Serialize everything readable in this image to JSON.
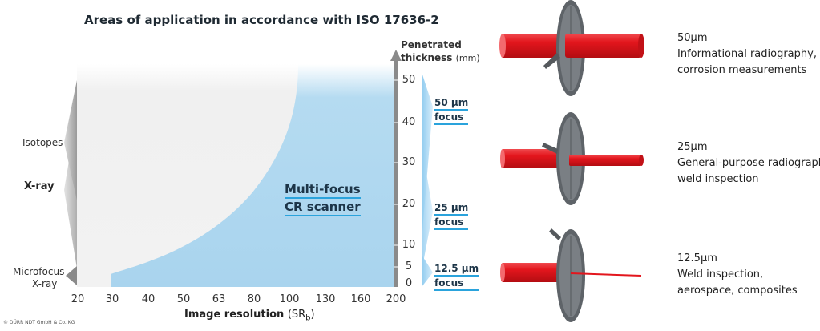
{
  "title": "Areas of application in accordance with ISO 17636-2",
  "left_labels": {
    "isotopes": "Isotopes",
    "xray": "X-ray",
    "microfocus_line1": "Microfocus",
    "microfocus_line2": "X-ray"
  },
  "y_axis": {
    "label_line1": "Penetrated",
    "label_line2": "thickness",
    "unit": "(mm)",
    "ticks": [
      "50",
      "40",
      "30",
      "20",
      "10",
      "5",
      "0"
    ]
  },
  "x_axis": {
    "label": "Image resolution",
    "unit": "(SR",
    "unit_sub": "b",
    "unit_close": ")",
    "ticks": [
      "20",
      "30",
      "40",
      "50",
      "63",
      "80",
      "100",
      "130",
      "160",
      "200"
    ]
  },
  "scanner": {
    "line1": "Multi-focus",
    "line2": "CR scanner"
  },
  "focus_labels": [
    {
      "line1": "50 µm",
      "line2": "focus"
    },
    {
      "line1": "25 µm",
      "line2": "focus"
    },
    {
      "line1": "12.5 µm",
      "line2": "focus"
    }
  ],
  "descriptions": [
    {
      "title": "50µm",
      "line1": "Informational radiography,",
      "line2": "corrosion measurements"
    },
    {
      "title": "25µm",
      "line1": "General-purpose radiography,",
      "line2": "weld inspection"
    },
    {
      "title": "12.5µm",
      "line1": "Weld inspection,",
      "line2": "aerospace, composites"
    }
  ],
  "copyright": "© DÜRR NDT GmbH & Co. KG",
  "colors": {
    "beam": "#e3161d",
    "region": "#a9d4ee",
    "accent": "#2aa3dc",
    "disc": "#5e6368"
  }
}
